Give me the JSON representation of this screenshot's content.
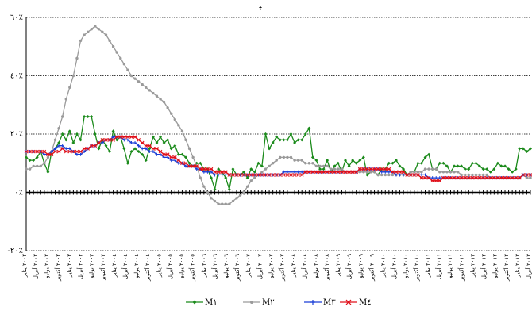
{
  "chart_data": {
    "type": "line",
    "title_fragment": "ﻴ",
    "y_ticks": [
      "٦٠٪",
      "٤٠٪",
      "٢٠٪",
      "٠٪",
      "-٢٠٪"
    ],
    "y_tick_values": [
      60,
      40,
      20,
      0,
      -20
    ],
    "ylim": [
      -20,
      60
    ],
    "grid": "dotted-horizontal",
    "legend_position": "bottom-center",
    "x_tick_labels": [
      "٢٠٠٢ يناير",
      "٢٠٠٢ أبريل",
      "٢٠٠٢ يوليو",
      "٢٠٠٢ أكتوبر",
      "٢٠٠٣ يناير",
      "٢٠٠٣ أبريل",
      "٢٠٠٣ يوليو",
      "٢٠٠٣ أكتوبر",
      "٢٠٠٤ يناير",
      "٢٠٠٤ أبريل",
      "٢٠٠٤ يوليو",
      "٢٠٠٤ أكتوبر",
      "٢٠٠٥ يناير",
      "٢٠٠٥ أبريل",
      "٢٠٠٥ يوليو",
      "٢٠٠٥ أكتوبر",
      "٢٠٠٦ يناير",
      "٢٠٠٦ أبريل",
      "٢٠٠٦ يوليو",
      "٢٠٠٦ أكتوبر",
      "٢٠٠٧ يناير",
      "٢٠٠٧ أبريل",
      "٢٠٠٧ يوليو",
      "٢٠٠٧ أكتوبر",
      "٢٠٠٨ يناير",
      "٢٠٠٨ أبريل",
      "٢٠٠٨ يوليو",
      "٢٠٠٨ أكتوبر",
      "٢٠٠٩ يناير",
      "٢٠٠٩ أبريل",
      "٢٠٠٩ يوليو",
      "٢٠٠٩ أكتوبر",
      "٢٠١٠ يناير",
      "٢٠١٠ أبريل",
      "٢٠١٠ يوليو",
      "٢٠١٠ أكتوبر",
      "٢٠١١ يناير",
      "٢٠١١ أبريل",
      "٢٠١١ يوليو",
      "٢٠١١ أكتوبر",
      "٢٠١٢ يناير",
      "٢٠١٢ أبريل",
      "٢٠١٢ يوليو",
      "٢٠١٢ أكتوبر",
      "٢٠١٣ يناير",
      "٢٠١٣ أبريل"
    ],
    "series": [
      {
        "name": "M١",
        "color": "#1a8a1a",
        "marker": "diamond",
        "values": [
          12,
          11,
          11,
          12,
          14,
          10,
          7,
          14,
          15,
          17,
          20,
          18,
          21,
          17,
          20,
          18,
          26,
          26,
          26,
          20,
          15,
          18,
          16,
          14,
          21,
          18,
          19,
          15,
          10,
          14,
          15,
          14,
          13,
          11,
          15,
          19,
          17,
          19,
          17,
          18,
          15,
          16,
          13,
          13,
          12,
          10,
          9,
          10,
          10,
          8,
          8,
          5,
          1,
          8,
          7,
          5,
          1,
          8,
          6,
          6,
          7,
          5,
          8,
          7,
          10,
          9,
          20,
          15,
          17,
          19,
          18,
          18,
          18,
          20,
          17,
          18,
          18,
          20,
          22,
          12,
          11,
          8,
          8,
          11,
          7,
          9,
          10,
          7,
          11,
          9,
          11,
          10,
          11,
          12,
          6,
          7,
          7,
          6,
          8,
          8,
          10,
          10,
          11,
          9,
          8,
          6,
          7,
          7,
          10,
          10,
          12,
          13,
          8,
          8,
          10,
          10,
          9,
          7,
          9,
          9,
          9,
          8,
          8,
          10,
          10,
          9,
          8,
          8,
          7,
          8,
          10,
          9,
          9,
          8,
          7,
          8,
          15,
          15,
          14,
          15
        ]
      },
      {
        "name": "M٢",
        "color": "#9a9a9a",
        "marker": "circle",
        "values": [
          8,
          8,
          9,
          9,
          9,
          10,
          12,
          14,
          18,
          22,
          26,
          32,
          36,
          40,
          46,
          52,
          54,
          55,
          56,
          57,
          56,
          55,
          54,
          52,
          50,
          48,
          46,
          44,
          42,
          40,
          39,
          38,
          37,
          36,
          35,
          34,
          33,
          32,
          31,
          29,
          27,
          25,
          23,
          21,
          18,
          15,
          12,
          9,
          5,
          2,
          0,
          -2,
          -3,
          -4,
          -4,
          -4,
          -4,
          -3,
          -2,
          -1,
          0,
          2,
          4,
          5,
          6,
          7,
          8,
          9,
          10,
          11,
          12,
          12,
          12,
          12,
          11,
          11,
          11,
          10,
          10,
          10,
          9,
          9,
          9,
          9,
          8,
          8,
          8,
          8,
          7,
          7,
          7,
          7,
          7,
          7,
          7,
          7,
          7,
          6,
          6,
          6,
          6,
          6,
          6,
          6,
          6,
          6,
          7,
          7,
          7,
          7,
          8,
          8,
          8,
          8,
          7,
          7,
          7,
          7,
          7,
          7,
          6,
          6,
          6,
          6,
          6,
          6,
          6,
          6,
          5,
          5,
          5,
          5,
          5,
          5,
          5,
          5,
          5,
          6,
          5,
          5
        ]
      },
      {
        "name": "M٣",
        "color": "#1a3fd6",
        "marker": "plus",
        "values": [
          14,
          14,
          14,
          14,
          14,
          13,
          13,
          14,
          15,
          16,
          16,
          15,
          15,
          14,
          13,
          13,
          14,
          15,
          16,
          16,
          17,
          17,
          18,
          18,
          19,
          19,
          19,
          18,
          18,
          17,
          17,
          16,
          15,
          15,
          14,
          14,
          13,
          13,
          12,
          12,
          11,
          11,
          10,
          10,
          9,
          9,
          9,
          8,
          8,
          7,
          7,
          7,
          6,
          6,
          6,
          6,
          6,
          6,
          6,
          6,
          6,
          6,
          6,
          6,
          6,
          6,
          6,
          6,
          6,
          6,
          6,
          7,
          7,
          7,
          7,
          7,
          7,
          7,
          7,
          7,
          7,
          7,
          7,
          7,
          7,
          7,
          7,
          7,
          7,
          7,
          7,
          7,
          8,
          8,
          8,
          8,
          8,
          8,
          7,
          7,
          7,
          7,
          6,
          6,
          6,
          6,
          6,
          6,
          6,
          6,
          6,
          5,
          5,
          5,
          5,
          5,
          5,
          5,
          5,
          5,
          5,
          5,
          5,
          5,
          5,
          5,
          5,
          5,
          5,
          5,
          5,
          5,
          5,
          5,
          5,
          5,
          5,
          6,
          6,
          6
        ]
      },
      {
        "name": "M٤",
        "color": "#e0101a",
        "marker": "star",
        "values": [
          14,
          14,
          14,
          14,
          14,
          14,
          13,
          13,
          14,
          14,
          15,
          14,
          14,
          14,
          14,
          14,
          15,
          15,
          16,
          16,
          17,
          18,
          18,
          18,
          18,
          19,
          19,
          19,
          19,
          19,
          19,
          18,
          17,
          16,
          16,
          15,
          15,
          14,
          13,
          13,
          12,
          12,
          11,
          10,
          10,
          9,
          9,
          9,
          8,
          8,
          8,
          8,
          7,
          7,
          7,
          7,
          6,
          6,
          6,
          6,
          6,
          6,
          6,
          6,
          6,
          6,
          6,
          6,
          6,
          6,
          6,
          6,
          6,
          6,
          6,
          6,
          6,
          7,
          7,
          7,
          7,
          7,
          7,
          7,
          7,
          7,
          7,
          7,
          7,
          7,
          7,
          7,
          8,
          8,
          8,
          8,
          8,
          8,
          8,
          8,
          8,
          7,
          7,
          7,
          7,
          6,
          6,
          6,
          6,
          5,
          5,
          5,
          4,
          4,
          4,
          5,
          5,
          5,
          5,
          5,
          5,
          5,
          5,
          5,
          5,
          5,
          5,
          5,
          5,
          5,
          5,
          5,
          5,
          5,
          5,
          5,
          5,
          6,
          6,
          6
        ]
      }
    ]
  }
}
